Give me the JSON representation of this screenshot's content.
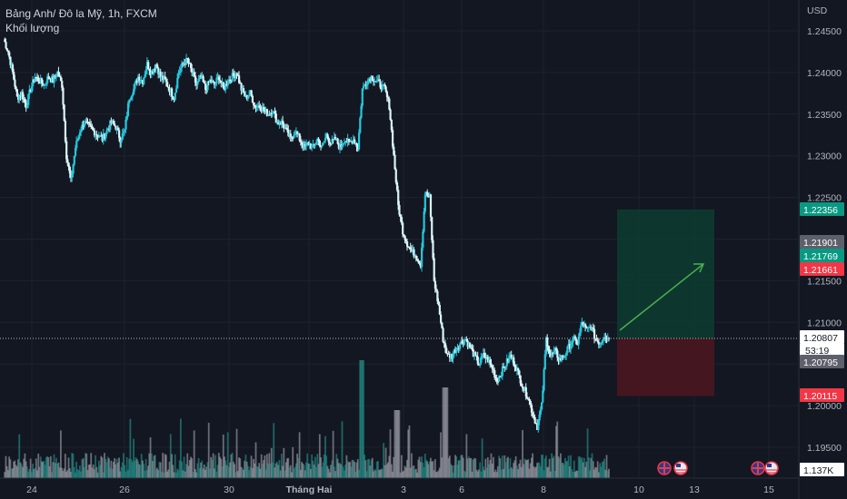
{
  "legend": {
    "symbol_line": "Bảng Anh/ Đô la Mỹ, 1h, FXCM",
    "volume_label": "Khối lượng"
  },
  "axis": {
    "currency": "USD",
    "price_ticks": [
      "1.24500",
      "1.24000",
      "1.23500",
      "1.23000",
      "1.22500",
      "1.21500",
      "1.21000",
      "1.20000",
      "1.19500"
    ],
    "time_ticks": [
      "24",
      "26",
      "30",
      "Tháng Hai",
      "3",
      "6",
      "8",
      "10",
      "13",
      "15"
    ]
  },
  "tags": {
    "target": {
      "label": "1.22356",
      "color": "#089981"
    },
    "high": {
      "label": "1.21901",
      "color": "#5d606b"
    },
    "green": {
      "label": "1.21769",
      "color": "#089981"
    },
    "red": {
      "label": "1.21661",
      "color": "#f23645"
    },
    "last_price": {
      "label": "1.20807",
      "color": "#ffffff"
    },
    "countdown": {
      "label": "53:19"
    },
    "entry": {
      "label": "1.20795",
      "color": "#5d606b"
    },
    "stop": {
      "label": "1.20115",
      "color": "#f23645"
    },
    "volume": {
      "label": "1.137K",
      "color": "#ffffff"
    }
  },
  "colors": {
    "background": "#131722",
    "candle": "#26c6da",
    "candle_dark": "#1e88a8",
    "volume_up": "#26a69a",
    "volume_down": "#b2b5be",
    "profit_zone": "#0d3b30",
    "loss_zone": "#4a1620",
    "arrow": "#4caf50"
  },
  "events": {
    "flag_icons": [
      "uk-flag-icon",
      "us-flag-icon",
      "uk-flag-icon",
      "us-flag-icon"
    ]
  },
  "chart_data": {
    "type": "candlestick",
    "title": "Bảng Anh/ Đô la Mỹ, 1h, FXCM",
    "ylabel": "USD",
    "ylim": [
      1.1925,
      1.247
    ],
    "price_close_path": [
      1.244,
      1.2425,
      1.24,
      1.237,
      1.2375,
      1.236,
      1.238,
      1.2395,
      1.239,
      1.2385,
      1.2395,
      1.239,
      1.24,
      1.2385,
      1.23,
      1.227,
      1.231,
      1.233,
      1.234,
      1.2335,
      1.233,
      1.2325,
      1.232,
      1.233,
      1.234,
      1.2335,
      1.232,
      1.233,
      1.237,
      1.238,
      1.2395,
      1.239,
      1.241,
      1.24,
      1.241,
      1.2395,
      1.239,
      1.238,
      1.237,
      1.24,
      1.241,
      1.2415,
      1.24,
      1.2385,
      1.2395,
      1.238,
      1.239,
      1.2385,
      1.2395,
      1.238,
      1.239,
      1.2395,
      1.24,
      1.238,
      1.237,
      1.2375,
      1.236,
      1.236,
      1.2355,
      1.235,
      1.2355,
      1.234,
      1.234,
      1.233,
      1.232,
      1.233,
      1.232,
      1.231,
      1.2315,
      1.231,
      1.232,
      1.231,
      1.2325,
      1.2315,
      1.232,
      1.231,
      1.232,
      1.2315,
      1.232,
      1.231,
      1.238,
      1.239,
      1.2395,
      1.239,
      1.2385,
      1.238,
      1.236,
      1.23,
      1.224,
      1.221,
      1.2195,
      1.2185,
      1.218,
      1.217,
      1.2255,
      1.225,
      1.215,
      1.212,
      1.208,
      1.206,
      1.206,
      1.207,
      1.2075,
      1.208,
      1.207,
      1.206,
      1.205,
      1.206,
      1.2055,
      1.2045,
      1.203,
      1.204,
      1.205,
      1.206,
      1.205,
      1.2035,
      1.202,
      1.201,
      1.199,
      1.1975,
      1.2,
      1.208,
      1.206,
      1.2065,
      1.2055,
      1.206,
      1.207,
      1.208,
      1.2075,
      1.21,
      1.209,
      1.2095,
      1.208,
      1.2075,
      1.2085,
      1.208
    ],
    "volume_max_label": "1.137K"
  }
}
